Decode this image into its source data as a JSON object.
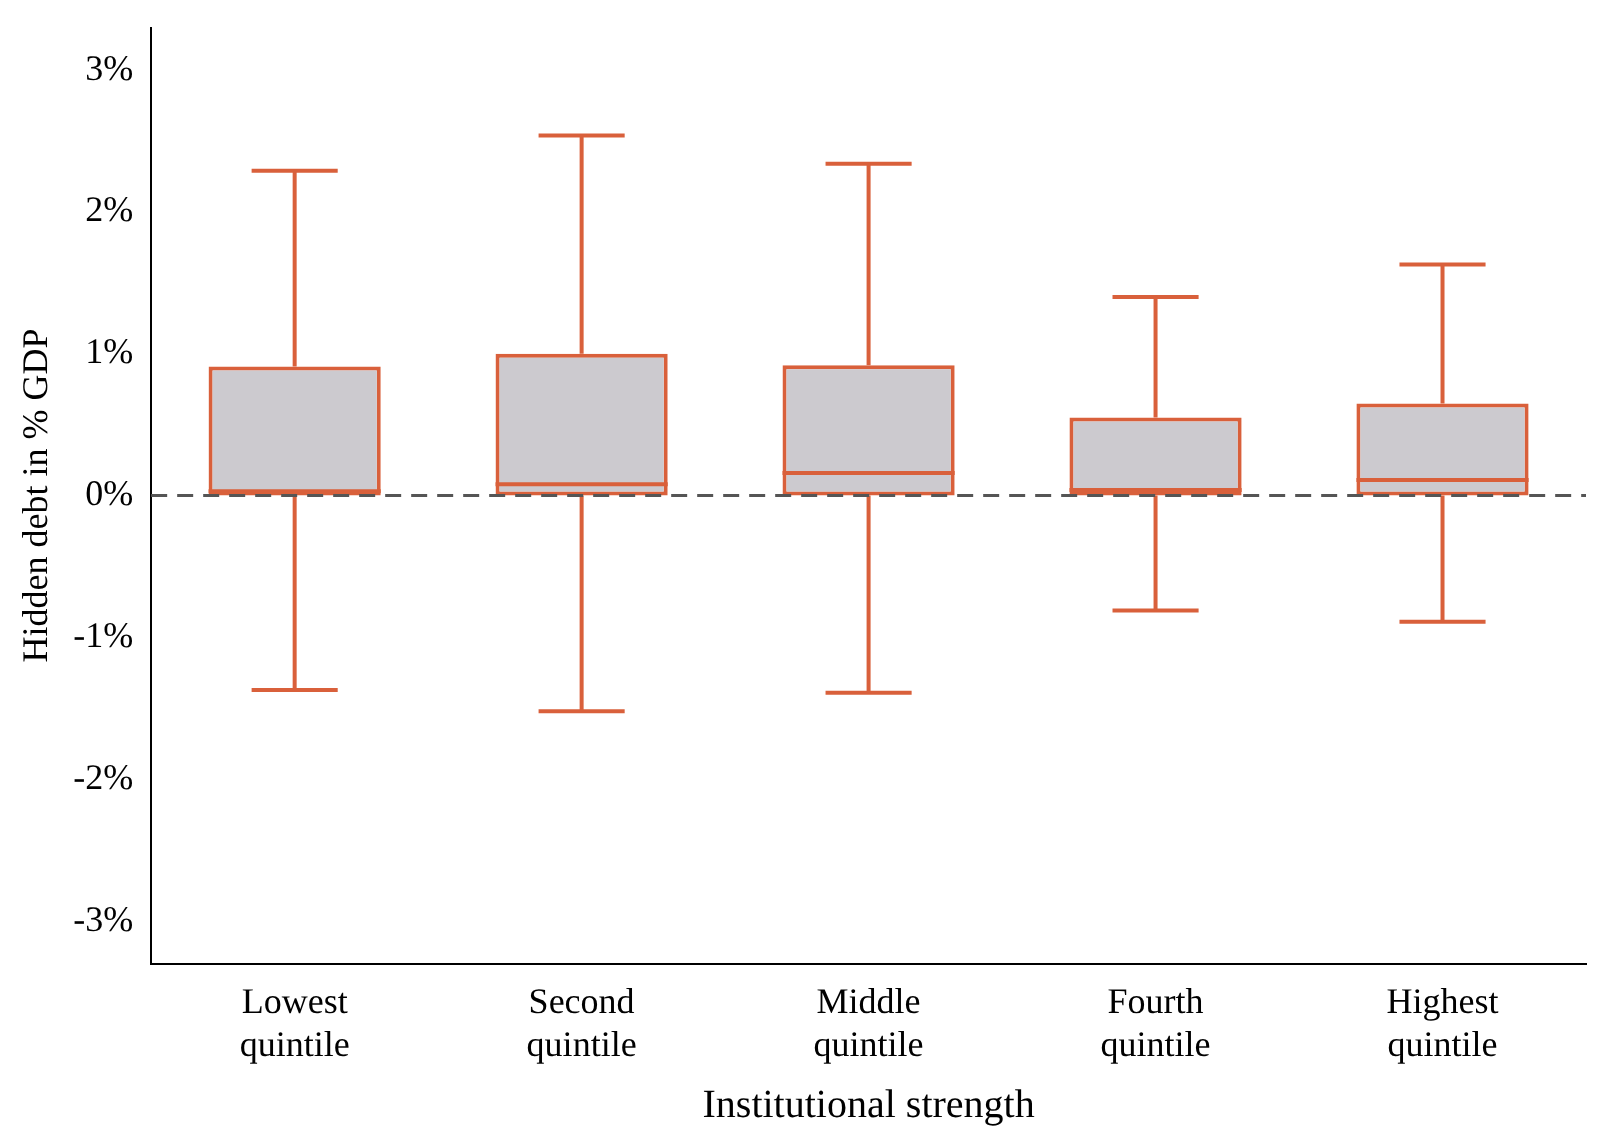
{
  "chart_data": {
    "type": "box",
    "xlabel": "Institutional strength",
    "ylabel": "Hidden debt in % GDP",
    "categories": [
      "Lowest quintile",
      "Second quintile",
      "Middle quintile",
      "Fourth quintile",
      "Highest quintile"
    ],
    "series": [
      {
        "color": "#d9603b",
        "boxes": [
          {
            "low": -1.37,
            "q1": 0,
            "median": 0.03,
            "q3": 0.91,
            "high": 2.29
          },
          {
            "low": -1.52,
            "q1": 0,
            "median": 0.08,
            "q3": 1.0,
            "high": 2.54
          },
          {
            "low": -1.39,
            "q1": 0,
            "median": 0.16,
            "q3": 0.92,
            "high": 2.34
          },
          {
            "low": -0.81,
            "q1": 0,
            "median": 0.04,
            "q3": 0.55,
            "high": 1.4
          },
          {
            "low": -0.89,
            "q1": 0,
            "median": 0.11,
            "q3": 0.65,
            "high": 1.63
          }
        ]
      }
    ],
    "ylim": [
      -3.3,
      3.3
    ],
    "yticks": [
      {
        "value": -3,
        "label": "-3%"
      },
      {
        "value": -2,
        "label": "-2%"
      },
      {
        "value": -1,
        "label": "-1%"
      },
      {
        "value": 0,
        "label": "0%"
      },
      {
        "value": 1,
        "label": "1%"
      },
      {
        "value": 2,
        "label": "2%"
      },
      {
        "value": 3,
        "label": "3%"
      }
    ],
    "ref_lines": [
      {
        "axis": "y",
        "value": 0,
        "color": "#555555",
        "line_style": "dashed"
      }
    ],
    "grid": false,
    "legend": false
  }
}
